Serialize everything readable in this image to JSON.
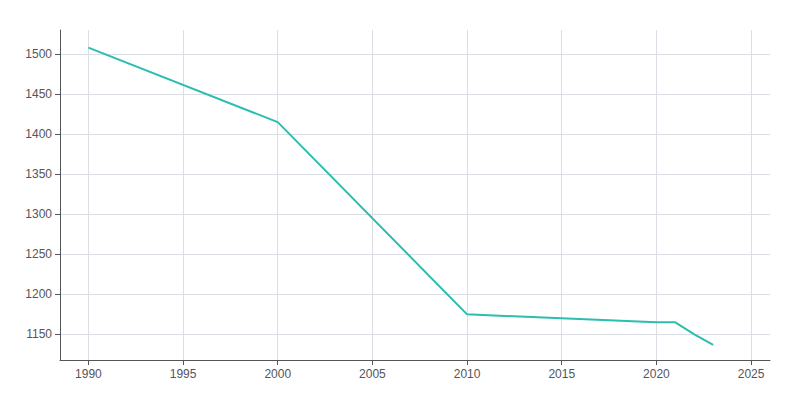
{
  "chart_data": {
    "type": "line",
    "x": [
      1990,
      2000,
      2010,
      2020,
      2021,
      2022,
      2023
    ],
    "values": [
      1508,
      1415,
      1175,
      1165,
      1165,
      1150,
      1137
    ],
    "color": "#2bbdb0",
    "xlim": [
      1988.5,
      2026
    ],
    "ylim": [
      1118,
      1530
    ],
    "xticks": [
      1990,
      1995,
      2000,
      2005,
      2010,
      2015,
      2020,
      2025
    ],
    "yticks": [
      1150,
      1200,
      1250,
      1300,
      1350,
      1400,
      1450,
      1500
    ],
    "grid": true
  }
}
